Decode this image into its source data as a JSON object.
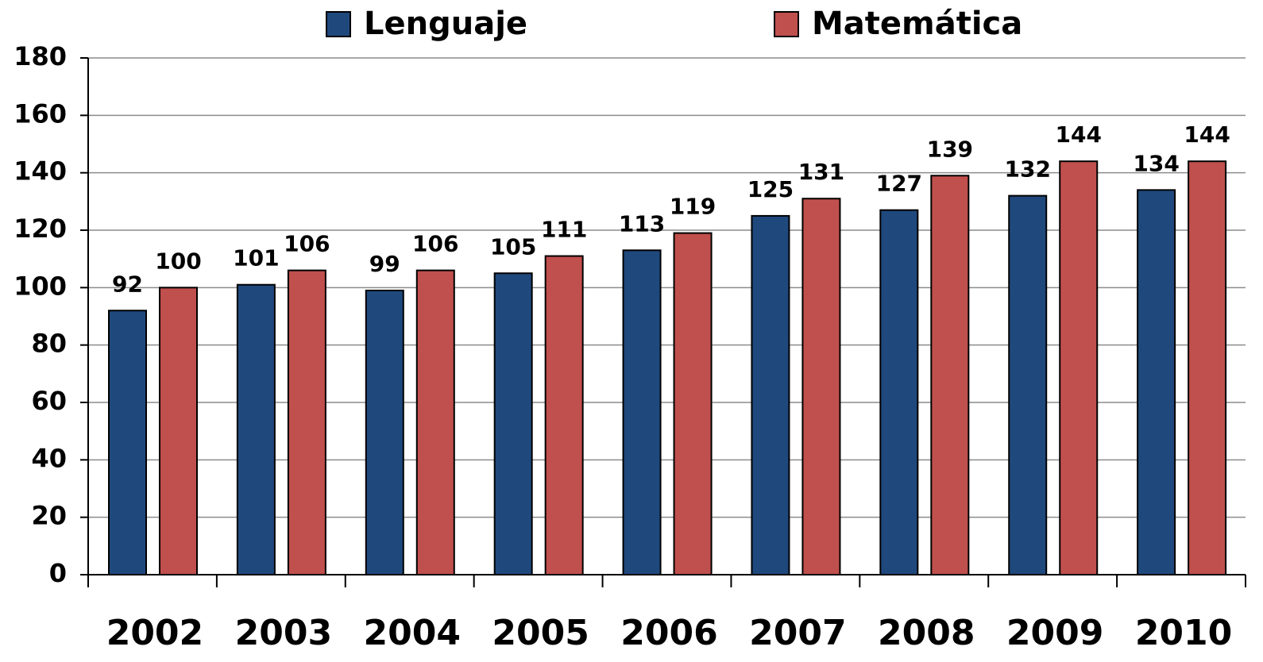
{
  "chart_data": {
    "type": "bar",
    "categories": [
      "2002",
      "2003",
      "2004",
      "2005",
      "2006",
      "2007",
      "2008",
      "2009",
      "2010"
    ],
    "series": [
      {
        "name": "Lenguaje",
        "color": "#1f497d",
        "values": [
          92,
          101,
          99,
          105,
          113,
          125,
          127,
          132,
          134
        ]
      },
      {
        "name": "Matemática",
        "color": "#c0504d",
        "values": [
          100,
          106,
          106,
          111,
          119,
          131,
          139,
          144,
          144
        ]
      }
    ],
    "ylim": [
      0,
      180
    ],
    "yticks": [
      0,
      20,
      40,
      60,
      80,
      100,
      120,
      140,
      160,
      180
    ],
    "grid": true
  }
}
